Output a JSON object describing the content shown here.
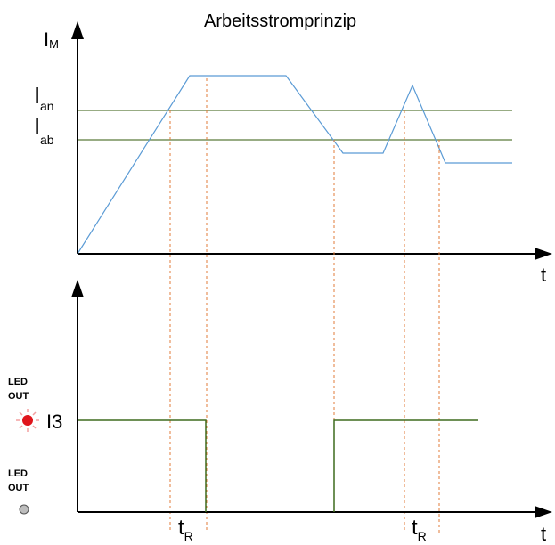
{
  "title": "Arbeitsstromprinzip",
  "axis_labels": {
    "current": "I",
    "current_sub": "M",
    "time_top": "t",
    "time_bottom": "t"
  },
  "thresholds": {
    "on": {
      "main": "I",
      "sub": "an"
    },
    "off": {
      "main": "I",
      "sub": "ab"
    }
  },
  "output_label": "I3",
  "led_labels": {
    "active": [
      "LED",
      "OUT"
    ],
    "inactive": [
      "LED",
      "OUT"
    ]
  },
  "delay_labels": [
    {
      "main": "t",
      "sub": "R"
    },
    {
      "main": "t",
      "sub": "R"
    }
  ],
  "colors": {
    "current_curve": "#5b9bd5",
    "threshold_lines": "#5b7a3a",
    "delay_markers": "#e07b39",
    "output_signal": "#3f6b1f",
    "led_on": "#e0151c",
    "led_off": "#bdbdbd",
    "axes": "#000000"
  }
}
